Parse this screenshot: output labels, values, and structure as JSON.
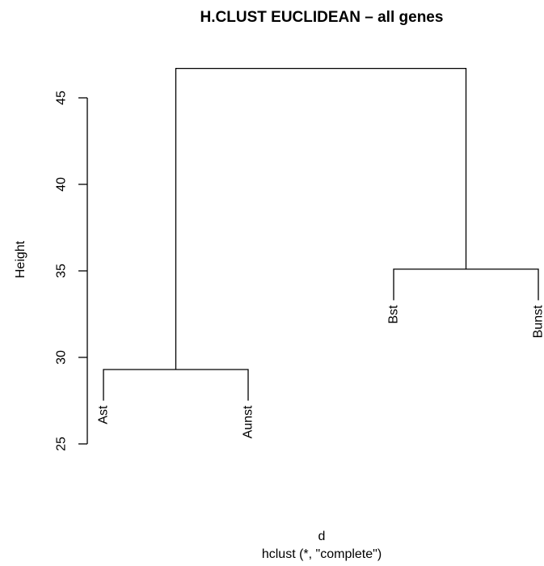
{
  "chart_data": {
    "type": "dendrogram",
    "title": "H.CLUST EUCLIDEAN – all genes",
    "ylabel": "Height",
    "xlabel": "d",
    "sub": "hclust (*, \"complete\")",
    "ylim": [
      25,
      47
    ],
    "yticks": [
      25,
      30,
      35,
      40,
      45
    ],
    "leaves": [
      {
        "label": "Ast",
        "height": 27.5
      },
      {
        "label": "Aunst",
        "height": 27.5
      },
      {
        "label": "Bst",
        "height": 33.3
      },
      {
        "label": "Bunst",
        "height": 33.3
      }
    ],
    "merges": [
      {
        "name": "merge-ast-aunst",
        "left": "Ast",
        "right": "Aunst",
        "height": 29.3
      },
      {
        "name": "merge-bst-bunst",
        "left": "Bst",
        "right": "Bunst",
        "height": 35.1
      },
      {
        "name": "merge-root",
        "left": "merge-ast-aunst",
        "right": "merge-bst-bunst",
        "height": 46.7
      }
    ]
  }
}
